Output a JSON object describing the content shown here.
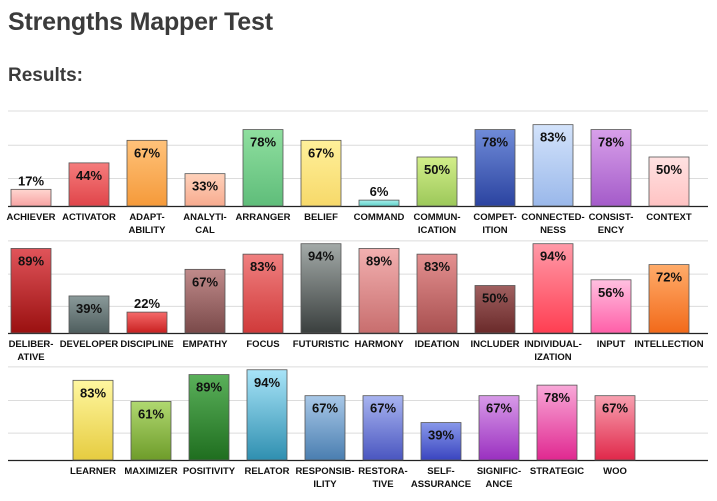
{
  "page": {
    "title": "Strengths Mapper Test",
    "results_heading": "Results:"
  },
  "chart_data": [
    {
      "type": "bar",
      "categories": [
        "ACHIEVER",
        "ACTIVATOR",
        "ADAPT-\nABILITY",
        "ANALYTI-\nCAL",
        "ARRANGER",
        "BELIEF",
        "COMMAND",
        "COMMUN-\nICATION",
        "COMPET-\nITION",
        "CONNECTED-\nNESS",
        "CONSIST-\nENCY",
        "CONTEXT"
      ],
      "values": [
        17,
        44,
        67,
        33,
        78,
        67,
        6,
        50,
        78,
        83,
        78,
        50
      ],
      "colors": [
        [
          "#ffd6d0",
          "#f7a3a3"
        ],
        [
          "#f57c7c",
          "#e0454a"
        ],
        [
          "#ffc27a",
          "#f59a3a"
        ],
        [
          "#ffd2bb",
          "#f7ab8f"
        ],
        [
          "#8fdf9f",
          "#5fbd7a"
        ],
        [
          "#fff09a",
          "#f7d96a"
        ],
        [
          "#a9f0ec",
          "#5fd0c8"
        ],
        [
          "#d3ee8a",
          "#9cc85a"
        ],
        [
          "#6f8bd8",
          "#2b43a0"
        ],
        [
          "#d3e3fb",
          "#9ab8ea"
        ],
        [
          "#d8a0ea",
          "#a45bc9"
        ],
        [
          "#ffe2e2",
          "#ffc3c3"
        ]
      ],
      "ylim": [
        0,
        100
      ]
    },
    {
      "type": "bar",
      "categories": [
        "DELIBER-\nATIVE",
        "DEVELOPER",
        "DISCIPLINE",
        "EMPATHY",
        "FOCUS",
        "FUTURISTIC",
        "HARMONY",
        "IDEATION",
        "INCLUDER",
        "INDIVIDUAL-\nIZATION",
        "INPUT",
        "INTELLECTION"
      ],
      "values": [
        89,
        39,
        22,
        67,
        83,
        94,
        89,
        83,
        50,
        94,
        56,
        72
      ],
      "colors": [
        [
          "#e0545a",
          "#9a1010"
        ],
        [
          "#8a9a9a",
          "#4f5e5e"
        ],
        [
          "#f56a6a",
          "#c82020"
        ],
        [
          "#c08a8a",
          "#7a4a4a"
        ],
        [
          "#f08080",
          "#d03a3a"
        ],
        [
          "#a3aaa8",
          "#3a3f3e"
        ],
        [
          "#f2b0b0",
          "#c86e6e"
        ],
        [
          "#e49090",
          "#a85050"
        ],
        [
          "#a06060",
          "#6a2a2a"
        ],
        [
          "#ff9aa8",
          "#ff3e52"
        ],
        [
          "#ffc0e0",
          "#ff5fa8"
        ],
        [
          "#ffac6a",
          "#f26a1a"
        ]
      ],
      "ylim": [
        0,
        100
      ]
    },
    {
      "type": "bar",
      "categories": [
        "LEARNER",
        "MAXIMIZER",
        "POSITIVITY",
        "RELATOR",
        "RESPONSIB-\nILITY",
        "RESTORA-\nTIVE",
        "SELF-\nASSURANCE",
        "SIGNIFIC-\nANCE",
        "STRATEGIC",
        "WOO"
      ],
      "values": [
        83,
        61,
        89,
        94,
        67,
        67,
        39,
        67,
        78,
        67
      ],
      "colors": [
        [
          "#fff7a0",
          "#e6cc40"
        ],
        [
          "#b0d870",
          "#6e9c2a"
        ],
        [
          "#5ab05a",
          "#1f6e1f"
        ],
        [
          "#a8e4f8",
          "#2f8fb0"
        ],
        [
          "#a8c8e8",
          "#4a7eb0"
        ],
        [
          "#a8b4f0",
          "#4a56c0"
        ],
        [
          "#8898ea",
          "#3a45c0"
        ],
        [
          "#d89ae8",
          "#9a30c0"
        ],
        [
          "#f8a8d8",
          "#e02890"
        ],
        [
          "#f8a0b0",
          "#e0284a"
        ]
      ],
      "ylim": [
        0,
        100
      ]
    }
  ]
}
